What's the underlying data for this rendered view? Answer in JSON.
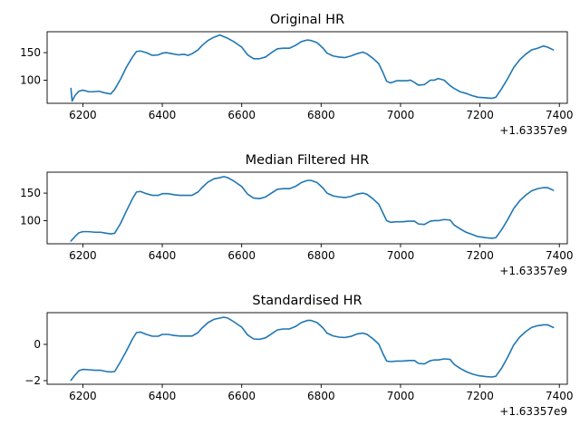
{
  "chart_data": [
    {
      "type": "line",
      "title": "Original HR",
      "x_offset_label": "+1.63357e9",
      "xlim": [
        6110,
        7420
      ],
      "ylim": [
        58,
        188
      ],
      "xticks": [
        6200,
        6400,
        6600,
        6800,
        7000,
        7200,
        7400
      ],
      "yticks": [
        100,
        150
      ],
      "series": [
        {
          "x": [
            6170,
            6173,
            6180,
            6190,
            6200,
            6215,
            6225,
            6240,
            6255,
            6270,
            6280,
            6295,
            6310,
            6325,
            6335,
            6345,
            6360,
            6375,
            6390,
            6400,
            6410,
            6425,
            6440,
            6455,
            6465,
            6475,
            6490,
            6500,
            6515,
            6530,
            6545,
            6555,
            6565,
            6580,
            6600,
            6615,
            6630,
            6645,
            6660,
            6675,
            6690,
            6705,
            6720,
            6735,
            6750,
            6765,
            6775,
            6790,
            6805,
            6815,
            6830,
            6845,
            6860,
            6875,
            6890,
            6905,
            6915,
            6930,
            6945,
            6955,
            6965,
            6975,
            6990,
            7005,
            7015,
            7025,
            7035,
            7045,
            7060,
            7075,
            7085,
            7095,
            7110,
            7125,
            7135,
            7150,
            7165,
            7180,
            7195,
            7215,
            7230,
            7240,
            7255,
            7270,
            7285,
            7300,
            7315,
            7330,
            7345,
            7360,
            7370,
            7385
          ],
          "y": [
            85,
            62,
            72,
            80,
            82,
            79,
            79,
            80,
            77,
            75,
            83,
            102,
            124,
            142,
            152,
            153,
            150,
            145,
            146,
            149,
            150,
            148,
            146,
            147,
            145,
            148,
            155,
            163,
            172,
            178,
            182,
            179,
            176,
            170,
            160,
            146,
            139,
            139,
            142,
            150,
            157,
            158,
            158,
            163,
            170,
            173,
            172,
            168,
            158,
            149,
            144,
            142,
            141,
            144,
            148,
            151,
            148,
            140,
            130,
            115,
            98,
            95,
            99,
            99,
            99,
            100,
            96,
            91,
            92,
            100,
            100,
            103,
            100,
            90,
            85,
            79,
            76,
            72,
            69,
            68,
            67,
            69,
            85,
            103,
            123,
            137,
            147,
            155,
            158,
            162,
            160,
            155
          ]
        }
      ]
    },
    {
      "type": "line",
      "title": "Median Filtered HR",
      "x_offset_label": "+1.63357e9",
      "xlim": [
        6110,
        7420
      ],
      "ylim": [
        58,
        188
      ],
      "xticks": [
        6200,
        6400,
        6600,
        6800,
        7000,
        7200,
        7400
      ],
      "yticks": [
        100,
        150
      ],
      "series": [
        {
          "x": [
            6170,
            6180,
            6190,
            6200,
            6215,
            6230,
            6245,
            6260,
            6270,
            6280,
            6295,
            6310,
            6325,
            6335,
            6345,
            6360,
            6375,
            6390,
            6400,
            6415,
            6430,
            6445,
            6460,
            6475,
            6490,
            6500,
            6515,
            6530,
            6545,
            6555,
            6565,
            6580,
            6600,
            6615,
            6630,
            6645,
            6660,
            6675,
            6690,
            6705,
            6720,
            6735,
            6750,
            6765,
            6775,
            6790,
            6805,
            6815,
            6830,
            6845,
            6860,
            6875,
            6890,
            6905,
            6915,
            6930,
            6945,
            6955,
            6965,
            6975,
            6990,
            7005,
            7020,
            7035,
            7045,
            7060,
            7075,
            7085,
            7095,
            7110,
            7125,
            7135,
            7150,
            7165,
            7180,
            7195,
            7215,
            7230,
            7240,
            7255,
            7270,
            7285,
            7300,
            7315,
            7330,
            7345,
            7360,
            7370,
            7385
          ],
          "y": [
            63,
            71,
            78,
            80,
            80,
            79,
            79,
            77,
            76,
            77,
            95,
            118,
            140,
            152,
            153,
            149,
            146,
            146,
            149,
            149,
            147,
            146,
            146,
            146,
            152,
            160,
            170,
            176,
            178,
            180,
            178,
            172,
            162,
            148,
            141,
            140,
            143,
            150,
            157,
            158,
            158,
            162,
            169,
            173,
            173,
            169,
            159,
            150,
            145,
            143,
            142,
            144,
            148,
            150,
            148,
            140,
            130,
            115,
            100,
            97,
            98,
            98,
            99,
            99,
            94,
            93,
            99,
            100,
            100,
            102,
            101,
            92,
            85,
            79,
            75,
            71,
            69,
            68,
            69,
            84,
            102,
            122,
            136,
            146,
            154,
            158,
            160,
            160,
            155
          ]
        }
      ]
    },
    {
      "type": "line",
      "title": "Standardised HR",
      "x_offset_label": "+1.63357e9",
      "xlim": [
        6110,
        7420
      ],
      "ylim": [
        -2.2,
        1.75
      ],
      "xticks": [
        6200,
        6400,
        6600,
        6800,
        7000,
        7200,
        7400
      ],
      "yticks": [
        -2,
        0
      ],
      "series": [
        {
          "x": [
            6170,
            6180,
            6190,
            6200,
            6215,
            6230,
            6245,
            6260,
            6270,
            6280,
            6295,
            6310,
            6325,
            6335,
            6345,
            6360,
            6375,
            6390,
            6400,
            6415,
            6430,
            6445,
            6460,
            6475,
            6490,
            6500,
            6515,
            6530,
            6545,
            6555,
            6565,
            6580,
            6600,
            6615,
            6630,
            6645,
            6660,
            6675,
            6690,
            6705,
            6720,
            6735,
            6750,
            6765,
            6775,
            6790,
            6805,
            6815,
            6830,
            6845,
            6860,
            6875,
            6890,
            6905,
            6915,
            6930,
            6945,
            6955,
            6965,
            6975,
            6990,
            7005,
            7020,
            7035,
            7045,
            7060,
            7075,
            7085,
            7095,
            7110,
            7125,
            7135,
            7150,
            7165,
            7180,
            7195,
            7215,
            7230,
            7240,
            7255,
            7270,
            7285,
            7300,
            7315,
            7330,
            7345,
            7360,
            7370,
            7385
          ],
          "y": [
            -1.98,
            -1.7,
            -1.45,
            -1.38,
            -1.4,
            -1.43,
            -1.43,
            -1.5,
            -1.52,
            -1.5,
            -0.95,
            -0.35,
            0.3,
            0.65,
            0.68,
            0.55,
            0.45,
            0.45,
            0.55,
            0.55,
            0.49,
            0.46,
            0.46,
            0.46,
            0.65,
            0.9,
            1.2,
            1.38,
            1.45,
            1.5,
            1.45,
            1.25,
            0.95,
            0.52,
            0.3,
            0.28,
            0.36,
            0.58,
            0.8,
            0.85,
            0.85,
            0.98,
            1.2,
            1.32,
            1.32,
            1.2,
            0.9,
            0.62,
            0.47,
            0.4,
            0.38,
            0.44,
            0.57,
            0.62,
            0.56,
            0.32,
            0.02,
            -0.48,
            -0.92,
            -0.95,
            -0.92,
            -0.92,
            -0.89,
            -0.89,
            -1.05,
            -1.08,
            -0.9,
            -0.86,
            -0.86,
            -0.8,
            -0.83,
            -1.1,
            -1.32,
            -1.5,
            -1.63,
            -1.72,
            -1.78,
            -1.8,
            -1.76,
            -1.3,
            -0.7,
            -0.03,
            0.4,
            0.7,
            0.93,
            1.03,
            1.08,
            1.08,
            0.93
          ]
        }
      ]
    }
  ]
}
